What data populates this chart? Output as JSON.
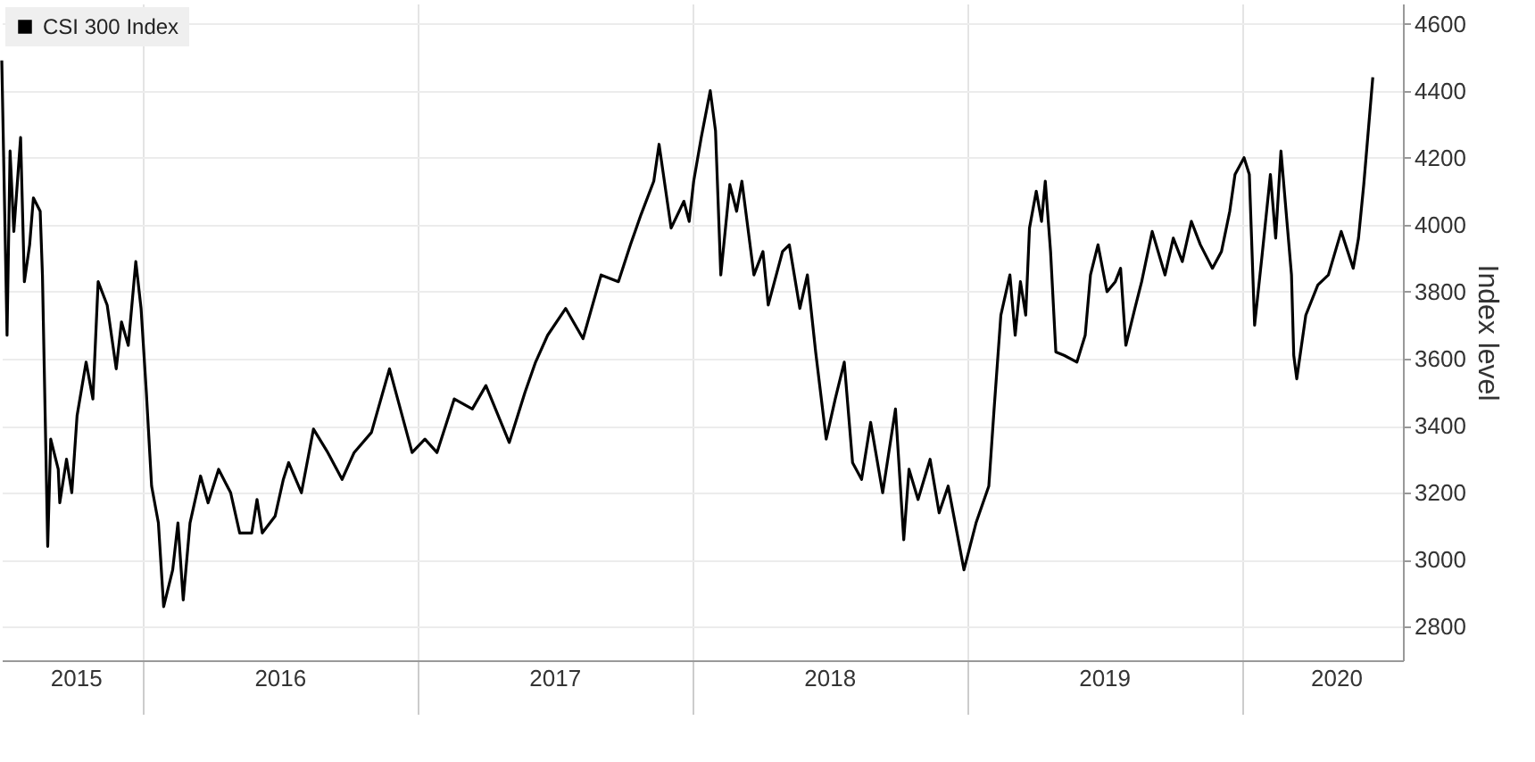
{
  "chart_data": {
    "type": "line",
    "ylabel": "Index level",
    "legend": "top left",
    "grid": true,
    "xlim": [
      "2015-06-28",
      "2020-08-01"
    ],
    "ylim": [
      2700,
      4660
    ],
    "yticks": [
      2800,
      3000,
      3200,
      3400,
      3600,
      3800,
      4000,
      4200,
      4400,
      4600
    ],
    "xticks": [
      {
        "value": "2015-10-04",
        "label": "2015"
      },
      {
        "value": "2016-01-01",
        "label": null
      },
      {
        "value": "2016-07-01",
        "label": "2016"
      },
      {
        "value": "2017-01-01",
        "label": null
      },
      {
        "value": "2017-07-01",
        "label": "2017"
      },
      {
        "value": "2018-01-01",
        "label": null
      },
      {
        "value": "2018-07-01",
        "label": "2018"
      },
      {
        "value": "2019-01-01",
        "label": null
      },
      {
        "value": "2019-07-01",
        "label": "2019"
      },
      {
        "value": "2020-01-01",
        "label": null
      },
      {
        "value": "2020-05-04",
        "label": "2020"
      }
    ],
    "x": [
      "2015-06-28",
      "2015-07-05",
      "2015-07-09",
      "2015-07-14",
      "2015-07-23",
      "2015-07-28",
      "2015-08-04",
      "2015-08-09",
      "2015-08-18",
      "2015-08-21",
      "2015-08-28",
      "2015-09-01",
      "2015-09-11",
      "2015-09-13",
      "2015-09-22",
      "2015-09-29",
      "2015-10-06",
      "2015-10-18",
      "2015-10-27",
      "2015-11-03",
      "2015-11-15",
      "2015-11-27",
      "2015-12-04",
      "2015-12-13",
      "2015-12-23",
      "2015-12-30",
      "2016-01-06",
      "2016-01-13",
      "2016-01-22",
      "2016-01-29",
      "2016-02-10",
      "2016-02-17",
      "2016-02-24",
      "2016-03-04",
      "2016-03-18",
      "2016-03-28",
      "2016-04-11",
      "2016-04-27",
      "2016-05-09",
      "2016-05-25",
      "2016-06-01",
      "2016-06-08",
      "2016-06-25",
      "2016-07-06",
      "2016-07-13",
      "2016-07-30",
      "2016-08-15",
      "2016-09-03",
      "2016-09-22",
      "2016-10-08",
      "2016-10-31",
      "2016-11-24",
      "2016-12-24",
      "2017-01-10",
      "2017-01-26",
      "2017-02-18",
      "2017-03-14",
      "2017-04-01",
      "2017-05-02",
      "2017-05-23",
      "2017-06-06",
      "2017-06-22",
      "2017-07-16",
      "2017-08-08",
      "2017-09-01",
      "2017-09-24",
      "2017-10-10",
      "2017-10-24",
      "2017-11-10",
      "2017-11-17",
      "2017-12-03",
      "2017-12-20",
      "2017-12-27",
      "2018-01-02",
      "2018-01-12",
      "2018-01-24",
      "2018-01-31",
      "2018-02-07",
      "2018-02-19",
      "2018-02-28",
      "2018-03-07",
      "2018-03-23",
      "2018-04-04",
      "2018-04-11",
      "2018-04-30",
      "2018-05-09",
      "2018-05-23",
      "2018-06-02",
      "2018-06-13",
      "2018-06-27",
      "2018-07-09",
      "2018-07-21",
      "2018-08-01",
      "2018-08-13",
      "2018-08-25",
      "2018-09-10",
      "2018-09-27",
      "2018-10-08",
      "2018-10-15",
      "2018-10-27",
      "2018-11-12",
      "2018-11-24",
      "2018-12-06",
      "2018-12-27",
      "2019-01-12",
      "2019-01-29",
      "2019-02-05",
      "2019-02-14",
      "2019-02-26",
      "2019-03-05",
      "2019-03-12",
      "2019-03-19",
      "2019-03-24",
      "2019-04-02",
      "2019-04-09",
      "2019-04-14",
      "2019-04-21",
      "2019-04-28",
      "2019-05-09",
      "2019-05-26",
      "2019-06-06",
      "2019-06-13",
      "2019-06-23",
      "2019-07-05",
      "2019-07-16",
      "2019-07-23",
      "2019-07-30",
      "2019-08-11",
      "2019-08-20",
      "2019-09-03",
      "2019-09-20",
      "2019-10-01",
      "2019-10-13",
      "2019-10-25",
      "2019-11-06",
      "2019-11-22",
      "2019-12-04",
      "2019-12-15",
      "2019-12-22",
      "2020-01-03",
      "2020-01-10",
      "2020-01-17",
      "2020-01-27",
      "2020-02-07",
      "2020-02-14",
      "2020-02-21",
      "2020-03-06",
      "2020-03-09",
      "2020-03-13",
      "2020-03-25",
      "2020-04-10",
      "2020-04-24",
      "2020-05-11",
      "2020-05-27",
      "2020-06-03",
      "2020-06-10",
      "2020-06-22"
    ],
    "series": [
      {
        "name": "CSI 300 Index",
        "color": "#000000",
        "values": [
          4490,
          3670,
          4220,
          3980,
          4260,
          3830,
          3940,
          4080,
          4040,
          3850,
          3040,
          3360,
          3270,
          3170,
          3300,
          3200,
          3430,
          3590,
          3480,
          3830,
          3760,
          3570,
          3710,
          3640,
          3890,
          3750,
          3500,
          3220,
          3110,
          2860,
          2970,
          3110,
          2880,
          3110,
          3250,
          3170,
          3270,
          3200,
          3080,
          3080,
          3180,
          3080,
          3130,
          3240,
          3290,
          3200,
          3390,
          3320,
          3240,
          3320,
          3380,
          3570,
          3320,
          3360,
          3320,
          3480,
          3450,
          3520,
          3350,
          3500,
          3590,
          3670,
          3750,
          3660,
          3850,
          3830,
          3940,
          4030,
          4130,
          4240,
          3990,
          4070,
          4010,
          4130,
          4260,
          4400,
          4280,
          3850,
          4120,
          4040,
          4130,
          3850,
          3920,
          3760,
          3920,
          3940,
          3750,
          3850,
          3620,
          3360,
          3480,
          3590,
          3290,
          3240,
          3410,
          3200,
          3450,
          3060,
          3270,
          3180,
          3300,
          3140,
          3220,
          2970,
          3110,
          3220,
          3450,
          3730,
          3850,
          3670,
          3830,
          3730,
          3990,
          4100,
          4010,
          4130,
          3920,
          3620,
          3610,
          3590,
          3670,
          3850,
          3940,
          3800,
          3830,
          3870,
          3640,
          3750,
          3830,
          3980,
          3850,
          3960,
          3890,
          4010,
          3940,
          3870,
          3920,
          4040,
          4150,
          4200,
          4150,
          3700,
          3910,
          4150,
          3960,
          4220,
          3850,
          3610,
          3540,
          3730,
          3820,
          3850,
          3980,
          3870,
          3960,
          4120,
          4440
        ]
      }
    ]
  }
}
